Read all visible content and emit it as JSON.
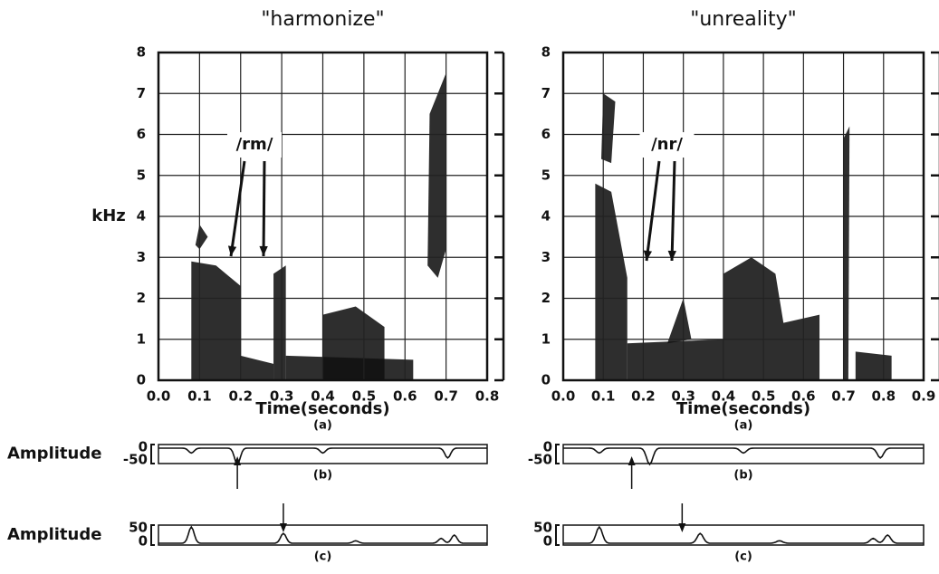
{
  "panels": [
    {
      "title": "\"harmonize\"",
      "ylabel": "kHz",
      "annotation": "/rm/",
      "xticks": [
        "0.0",
        "0.1",
        "0.2",
        "0.3",
        "0.4",
        "0.5",
        "0.6",
        "0.7",
        "0.8"
      ],
      "yticks": [
        "0",
        "1",
        "2",
        "3",
        "4",
        "5",
        "6",
        "7",
        "8"
      ],
      "xlabel": "Time(seconds)",
      "sublabel_a": "(a)",
      "amp_b": {
        "label": "Amplitude",
        "ticks": [
          "0",
          "-50"
        ],
        "sublabel": "(b)"
      },
      "amp_c": {
        "label": "Amplitude",
        "ticks": [
          "50",
          "0"
        ],
        "sublabel": "(c)"
      }
    },
    {
      "title": "\"unreality\"",
      "annotation": "/nr/",
      "xticks": [
        "0.0",
        "0.1",
        "0.2",
        "0.3",
        "0.4",
        "0.5",
        "0.6",
        "0.7",
        "0.8",
        "0.9"
      ],
      "yticks": [
        "0",
        "1",
        "2",
        "3",
        "4",
        "5",
        "6",
        "7",
        "8"
      ],
      "xlabel": "Time(seconds)",
      "sublabel_a": "(a)",
      "amp_b": {
        "ticks": [
          "0",
          "-50"
        ],
        "sublabel": "(b)"
      },
      "amp_c": {
        "ticks": [
          "50",
          "0"
        ],
        "sublabel": "(c)"
      }
    }
  ]
}
